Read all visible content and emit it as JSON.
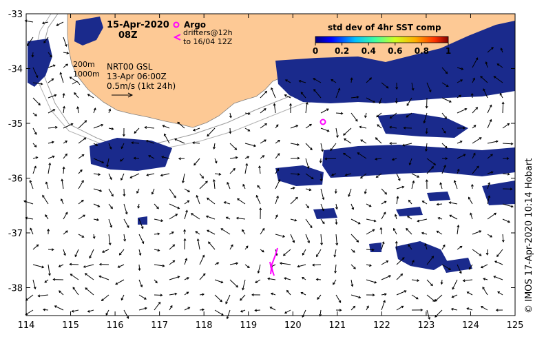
{
  "map": {
    "title_date": "15-Apr-2020",
    "title_time": "08Z",
    "legend_argo": "Argo",
    "legend_drifters_line1": "drifters@12h",
    "legend_drifters_line2": "to 16/04 12Z",
    "contour_200": "200m",
    "contour_1000": "1000m",
    "product": "NRT00 GSL",
    "product_time": "13-Apr 06:00Z",
    "vector_scale": "0.5m/s (1kt 24h)",
    "colorbar_title": "std dev of 4hr SST comp",
    "colorbar_ticks": [
      "0",
      "0.2",
      "0.4",
      "0.6",
      "0.8",
      "1"
    ],
    "x_ticks": [
      "114",
      "115",
      "116",
      "117",
      "118",
      "119",
      "120",
      "121",
      "122",
      "123",
      "124",
      "125"
    ],
    "y_ticks": [
      "-33",
      "-34",
      "-35",
      "-36",
      "-37",
      "-38"
    ],
    "credit": "© IMOS 17-Apr-2020 10:14 Hobart",
    "colors": {
      "land": "#fdc995",
      "sst_high": "#1a2a8c",
      "sst_low": "#1040c8",
      "argo": "#ff00ff",
      "drifter": "#ff00ff"
    }
  }
}
